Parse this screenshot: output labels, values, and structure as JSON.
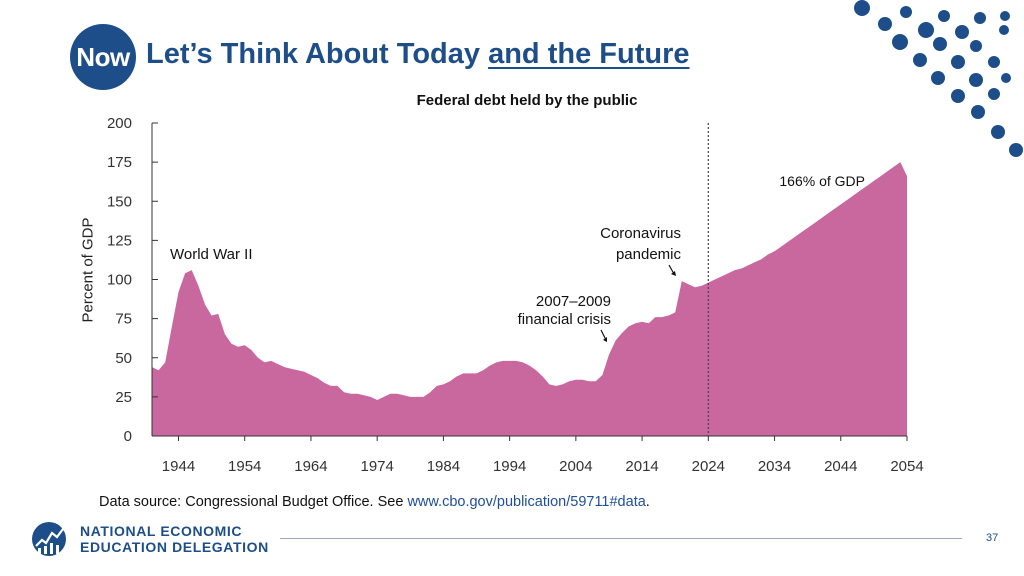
{
  "slide": {
    "badge": "Now",
    "title_main": "Let’s Think About Today ",
    "title_underlined": "and the Future",
    "page_number": "37",
    "source_prefix": "Data source: Congressional Budget Office. See ",
    "source_link": "www.cbo.gov/publication/59711#data",
    "source_suffix": ".",
    "logo_line1": "NATIONAL ECONOMIC",
    "logo_line2": "EDUCATION DELEGATION",
    "colors": {
      "brand": "#1d4e89",
      "area": "#c9679f",
      "dots": "#1d4e89"
    }
  },
  "chart_data": {
    "type": "area",
    "title": "Federal debt held by the public",
    "ylabel": "Percent of GDP",
    "xlabel": "",
    "xlim": [
      1940,
      2054
    ],
    "ylim": [
      0,
      200
    ],
    "yticks": [
      0,
      25,
      50,
      75,
      100,
      125,
      150,
      175,
      200
    ],
    "xticks": [
      1944,
      1954,
      1964,
      1974,
      1984,
      1994,
      2004,
      2014,
      2024,
      2034,
      2044,
      2054
    ],
    "x": [
      1940,
      1941,
      1942,
      1943,
      1944,
      1945,
      1946,
      1947,
      1948,
      1949,
      1950,
      1951,
      1952,
      1953,
      1954,
      1955,
      1956,
      1957,
      1958,
      1959,
      1960,
      1961,
      1962,
      1963,
      1964,
      1965,
      1966,
      1967,
      1968,
      1969,
      1970,
      1971,
      1972,
      1973,
      1974,
      1975,
      1976,
      1977,
      1978,
      1979,
      1980,
      1981,
      1982,
      1983,
      1984,
      1985,
      1986,
      1987,
      1988,
      1989,
      1990,
      1991,
      1992,
      1993,
      1994,
      1995,
      1996,
      1997,
      1998,
      1999,
      2000,
      2001,
      2002,
      2003,
      2004,
      2005,
      2006,
      2007,
      2008,
      2009,
      2010,
      2011,
      2012,
      2013,
      2014,
      2015,
      2016,
      2017,
      2018,
      2019,
      2020,
      2021,
      2022,
      2023,
      2024,
      2025,
      2026,
      2027,
      2028,
      2029,
      2030,
      2031,
      2032,
      2033,
      2034,
      2035,
      2036,
      2037,
      2038,
      2039,
      2040,
      2041,
      2042,
      2043,
      2044,
      2045,
      2046,
      2047,
      2048,
      2049,
      2050,
      2051,
      2052,
      2053,
      2054
    ],
    "values": [
      44,
      42,
      47,
      70,
      92,
      104,
      106,
      96,
      84,
      77,
      78,
      65,
      59,
      57,
      58,
      55,
      50,
      47,
      48,
      46,
      44,
      43,
      42,
      41,
      39,
      37,
      34,
      32,
      32,
      28,
      27,
      27,
      26,
      25,
      23,
      25,
      27,
      27,
      26,
      25,
      25,
      25,
      28,
      32,
      33,
      35,
      38,
      40,
      40,
      40,
      42,
      45,
      47,
      48,
      48,
      48,
      47,
      45,
      42,
      38,
      33,
      32,
      33,
      35,
      36,
      36,
      35,
      35,
      39,
      52,
      61,
      66,
      70,
      72,
      73,
      72,
      76,
      76,
      77,
      79,
      99,
      97,
      95,
      96,
      98,
      100,
      102,
      104,
      106,
      107,
      109,
      111,
      113,
      116,
      118,
      121,
      124,
      127,
      130,
      133,
      136,
      139,
      142,
      145,
      148,
      151,
      154,
      157,
      160,
      163,
      166,
      169,
      172,
      175,
      166
    ],
    "annotations": [
      {
        "text": "World War II",
        "x": 1945,
        "y": 115
      },
      {
        "text": "2007–2009",
        "text2": "financial crisis",
        "x": 2008,
        "y": 80
      },
      {
        "text": "Coronavirus",
        "text2": "pandemic",
        "x": 2020,
        "y": 130
      },
      {
        "text": "166% of GDP",
        "x": 2054,
        "y": 166
      }
    ],
    "vline_x": 2024,
    "grid": false,
    "legend": "none"
  }
}
